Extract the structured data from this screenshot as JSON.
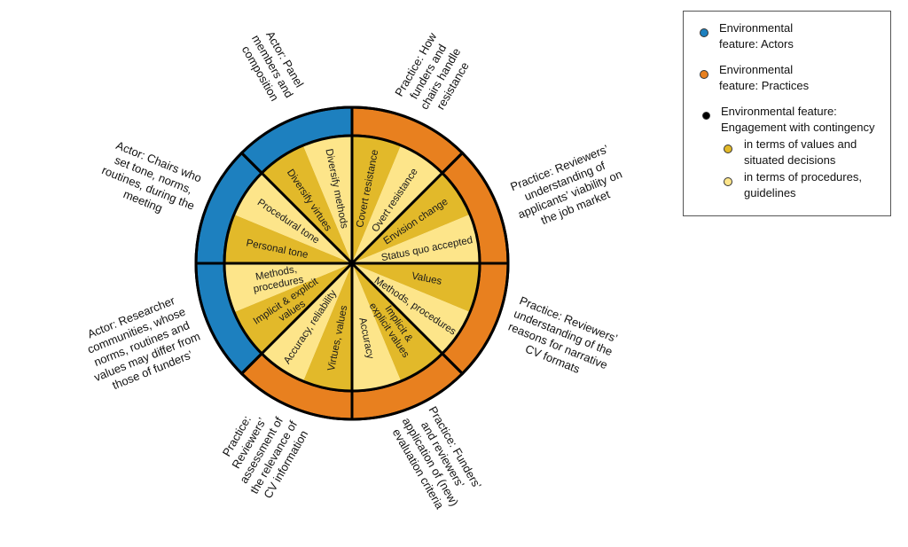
{
  "colors": {
    "actor": "#1d80bf",
    "practice": "#e8801f",
    "values": "#e2b92a",
    "procedures": "#fde58a",
    "line": "#000000"
  },
  "sectors": [
    {
      "type": "practice",
      "name": "funders-chairs-resistance"
    },
    {
      "type": "practice",
      "name": "applicants-viability"
    },
    {
      "type": "practice",
      "name": "narrative-cv-reasons"
    },
    {
      "type": "practice",
      "name": "evaluation-criteria"
    },
    {
      "type": "practice",
      "name": "cv-relevance"
    },
    {
      "type": "actor",
      "name": "researcher-communities"
    },
    {
      "type": "actor",
      "name": "chairs-tone"
    },
    {
      "type": "actor",
      "name": "panel-composition"
    }
  ],
  "wedges": [
    {
      "shade": "values",
      "lines": [
        "Covert resistance"
      ]
    },
    {
      "shade": "procedures",
      "lines": [
        "Overt resistance"
      ]
    },
    {
      "shade": "values",
      "lines": [
        "Envision change"
      ]
    },
    {
      "shade": "procedures",
      "lines": [
        "Status quo accepted"
      ]
    },
    {
      "shade": "values",
      "lines": [
        "Values"
      ]
    },
    {
      "shade": "procedures",
      "lines": [
        "Methods, procedures"
      ]
    },
    {
      "shade": "values",
      "lines": [
        "Implicit &",
        "explicit values"
      ]
    },
    {
      "shade": "procedures",
      "lines": [
        "Accuracy"
      ]
    },
    {
      "shade": "values",
      "lines": [
        "Virtues, values"
      ]
    },
    {
      "shade": "procedures",
      "lines": [
        "Accuracy, reliability"
      ]
    },
    {
      "shade": "values",
      "lines": [
        "Implicit & explicit",
        "values"
      ]
    },
    {
      "shade": "procedures",
      "lines": [
        "Methods,",
        "procedures"
      ]
    },
    {
      "shade": "values",
      "lines": [
        "Personal tone"
      ]
    },
    {
      "shade": "procedures",
      "lines": [
        "Procedural tone"
      ]
    },
    {
      "shade": "values",
      "lines": [
        "Diversify virtues"
      ]
    },
    {
      "shade": "procedures",
      "lines": [
        "Diversify methods"
      ]
    }
  ],
  "outer_labels": [
    {
      "lines": [
        "Practice: How",
        "funders and",
        "chairs handle",
        "resistance"
      ]
    },
    {
      "lines": [
        "Practice: Reviewers’",
        "understanding of",
        "applicants’ viability on",
        "the job market"
      ]
    },
    {
      "lines": [
        "Practice: Reviewers’",
        "understanding of the",
        "reasons for narrative",
        "CV formats"
      ]
    },
    {
      "lines": [
        "Practice: Funders’",
        "and reviewers’",
        "application of (new)",
        "evaluation criteria"
      ]
    },
    {
      "lines": [
        "Practice:",
        "Reviewers’",
        "assessment of",
        "the relevance of",
        "CV information"
      ]
    },
    {
      "lines": [
        "Actor: Researcher",
        "communities, whose",
        "norms, routines and",
        "values may differ from",
        "those of funders’"
      ]
    },
    {
      "lines": [
        "Actor: Chairs who",
        "set tone, norms,",
        "routines, during the",
        "meeting"
      ]
    },
    {
      "lines": [
        "Actor: Panel",
        "members and",
        "composition"
      ]
    }
  ],
  "legend": {
    "actors": [
      "Environmental",
      "feature: Actors"
    ],
    "practices": [
      "Environmental",
      "feature: Practices"
    ],
    "engagement": [
      "Environmental feature:",
      "Engagement with contingency"
    ],
    "values": [
      "in terms of values and",
      "situated decisions"
    ],
    "procedures": [
      "in terms of procedures,",
      "guidelines"
    ]
  }
}
